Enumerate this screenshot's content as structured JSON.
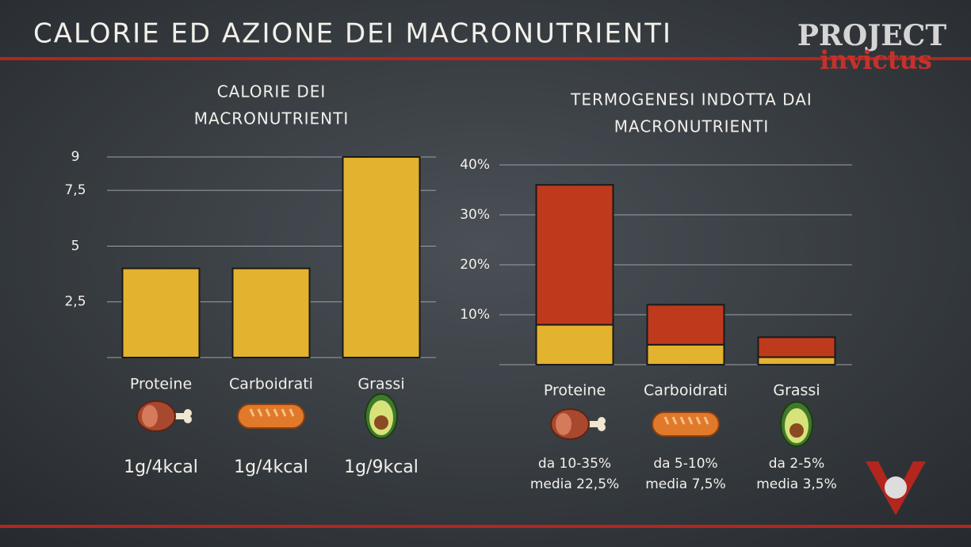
{
  "title": "CALORIE ED AZIONE DEI MACRONUTRIENTI",
  "logo": [
    "PROJECT",
    "invictus"
  ],
  "chart_data": [
    {
      "type": "bar",
      "title": [
        "CALORIE DEI",
        "MACRONUTRIENTI"
      ],
      "categories": [
        "Proteine",
        "Carboidrati",
        "Grassi"
      ],
      "values": [
        4,
        4,
        9
      ],
      "color": "#e3b22e",
      "ylim": [
        0,
        9
      ],
      "yticks": [
        {
          "value": 2.5,
          "label": "2,5"
        },
        5,
        {
          "value": 7.5,
          "label": "7,5"
        },
        9
      ],
      "grid": true,
      "annotations": [
        [
          "1g/4kcal"
        ],
        [
          "1g/4kcal"
        ],
        [
          "1g/9kcal"
        ]
      ]
    },
    {
      "type": "stacked_bar",
      "title": [
        "TERMOGENESI INDOTTA DAI",
        "MACRONUTRIENTI"
      ],
      "categories": [
        "Proteine",
        "Carboidrati",
        "Grassi"
      ],
      "series": [
        {
          "color": "#e3b22e",
          "values": [
            8,
            4,
            1.5
          ]
        },
        {
          "color": "#bf3a1c",
          "values": [
            28,
            8,
            4
          ]
        }
      ],
      "ylim": [
        0,
        40
      ],
      "yticks": [
        {
          "value": 10,
          "label": "10%"
        },
        {
          "value": 20,
          "label": "20%"
        },
        {
          "value": 30,
          "label": "30%"
        },
        {
          "value": 40,
          "label": "40%"
        }
      ],
      "grid": true,
      "annotations": [
        [
          "da 10-35%",
          "media 22,5%"
        ],
        [
          "da 5-10%",
          "media 7,5%"
        ],
        [
          "da 2-5%",
          "media 3,5%"
        ]
      ]
    }
  ]
}
